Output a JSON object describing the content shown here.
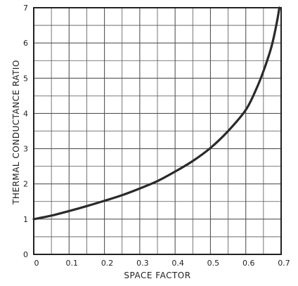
{
  "chart_data": {
    "type": "line",
    "title": "",
    "xlabel": "SPACE FACTOR",
    "ylabel": "THERMAL CONDUCTANCE RATIO",
    "xlim": [
      0,
      0.7
    ],
    "ylim": [
      0,
      7
    ],
    "x_ticks": [
      "0",
      "0.1",
      "0.2",
      "0.3",
      "0.4",
      "0.5",
      "0.6",
      "0.7"
    ],
    "y_ticks": [
      "0",
      "1",
      "2",
      "3",
      "4",
      "5",
      "6",
      "7"
    ],
    "grid": true,
    "grid_minor_divisions": 2,
    "series": [
      {
        "x": [
          0,
          0.05,
          0.1,
          0.15,
          0.2,
          0.25,
          0.3,
          0.35,
          0.4,
          0.45,
          0.5,
          0.55,
          0.6,
          0.63,
          0.65,
          0.67,
          0.68,
          0.69,
          0.695
        ],
        "y": [
          1.0,
          1.1,
          1.23,
          1.37,
          1.52,
          1.68,
          1.87,
          2.08,
          2.35,
          2.65,
          3.02,
          3.5,
          4.1,
          4.7,
          5.2,
          5.8,
          6.2,
          6.7,
          7.0
        ]
      }
    ],
    "line_color": "#2a2a2a",
    "grid_color": "#555555"
  }
}
